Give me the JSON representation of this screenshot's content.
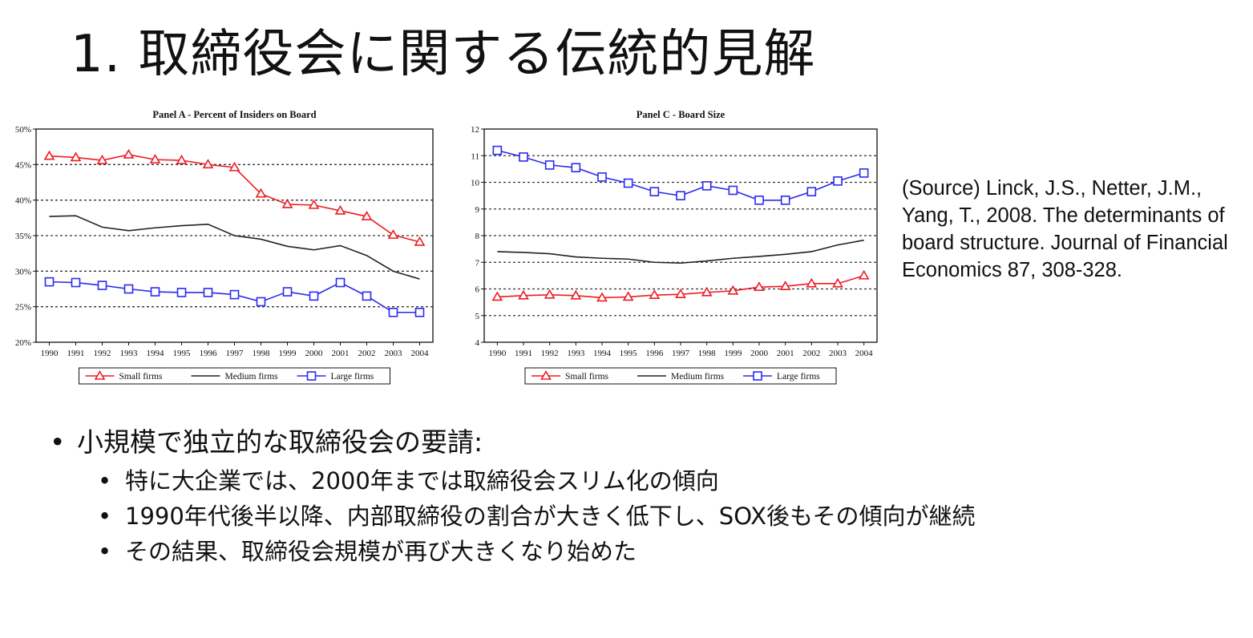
{
  "title": "1. 取締役会に関する伝統的見解",
  "source_note": "(Source) Linck, J.S., Netter, J.M., Yang, T., 2008. The determinants of board structure. Journal of Financial Economics 87, 308-328.",
  "colors": {
    "small": "#ee1c24",
    "medium": "#222222",
    "large": "#2b2bee"
  },
  "chart_data": [
    {
      "type": "line",
      "title": "Panel A - Percent of Insiders on Board",
      "x": [
        "1990",
        "1991",
        "1992",
        "1993",
        "1994",
        "1995",
        "1996",
        "1997",
        "1998",
        "1999",
        "2000",
        "2001",
        "2002",
        "2003",
        "2004"
      ],
      "ylim": [
        20,
        50
      ],
      "yticks": [
        20,
        25,
        30,
        35,
        40,
        45,
        50
      ],
      "ytick_labels": [
        "20%",
        "25%",
        "30%",
        "35%",
        "40%",
        "45%",
        "50%"
      ],
      "gridlines": "dotted",
      "legend_position": "bottom",
      "series": [
        {
          "name": "Small firms",
          "marker": "triangle",
          "values": [
            46.2,
            46.0,
            45.6,
            46.4,
            45.7,
            45.6,
            45.0,
            44.6,
            40.9,
            39.4,
            39.3,
            38.5,
            37.7,
            35.1,
            34.1
          ]
        },
        {
          "name": "Medium firms",
          "marker": "none",
          "values": [
            37.7,
            37.8,
            36.2,
            35.7,
            36.1,
            36.4,
            36.6,
            35.0,
            34.5,
            33.5,
            33.0,
            33.6,
            32.2,
            30.0,
            28.9
          ]
        },
        {
          "name": "Large firms",
          "marker": "square",
          "values": [
            28.5,
            28.4,
            28.0,
            27.5,
            27.1,
            27.0,
            27.0,
            26.7,
            25.7,
            27.1,
            26.5,
            28.4,
            26.5,
            24.2,
            24.2
          ]
        }
      ]
    },
    {
      "type": "line",
      "title": "Panel C - Board Size",
      "x": [
        "1990",
        "1991",
        "1992",
        "1993",
        "1994",
        "1995",
        "1996",
        "1997",
        "1998",
        "1999",
        "2000",
        "2001",
        "2002",
        "2003",
        "2004"
      ],
      "ylim": [
        4,
        12
      ],
      "yticks": [
        4,
        5,
        6,
        7,
        8,
        9,
        10,
        11,
        12
      ],
      "ytick_labels": [
        "4",
        "5",
        "6",
        "7",
        "8",
        "9",
        "10",
        "11",
        "12"
      ],
      "gridlines": "dotted",
      "legend_position": "bottom",
      "series": [
        {
          "name": "Small firms",
          "marker": "triangle",
          "values": [
            5.7,
            5.75,
            5.78,
            5.75,
            5.67,
            5.7,
            5.77,
            5.8,
            5.87,
            5.93,
            6.07,
            6.1,
            6.2,
            6.2,
            6.5
          ]
        },
        {
          "name": "Medium firms",
          "marker": "none",
          "values": [
            7.4,
            7.37,
            7.32,
            7.2,
            7.15,
            7.12,
            7.0,
            6.97,
            7.05,
            7.15,
            7.22,
            7.3,
            7.4,
            7.65,
            7.83
          ]
        },
        {
          "name": "Large firms",
          "marker": "square",
          "values": [
            11.2,
            10.95,
            10.65,
            10.55,
            10.2,
            9.97,
            9.65,
            9.5,
            9.87,
            9.7,
            9.33,
            9.33,
            9.65,
            10.05,
            10.35
          ]
        }
      ]
    }
  ],
  "bullets": {
    "main": "小規模で独立的な取締役会の要請:",
    "sub": [
      "特に大企業では、2000年までは取締役会スリム化の傾向",
      "1990年代後半以降、内部取締役の割合が大きく低下し、SOX後もその傾向が継続",
      "その結果、取締役会規模が再び大きくなり始めた"
    ]
  }
}
